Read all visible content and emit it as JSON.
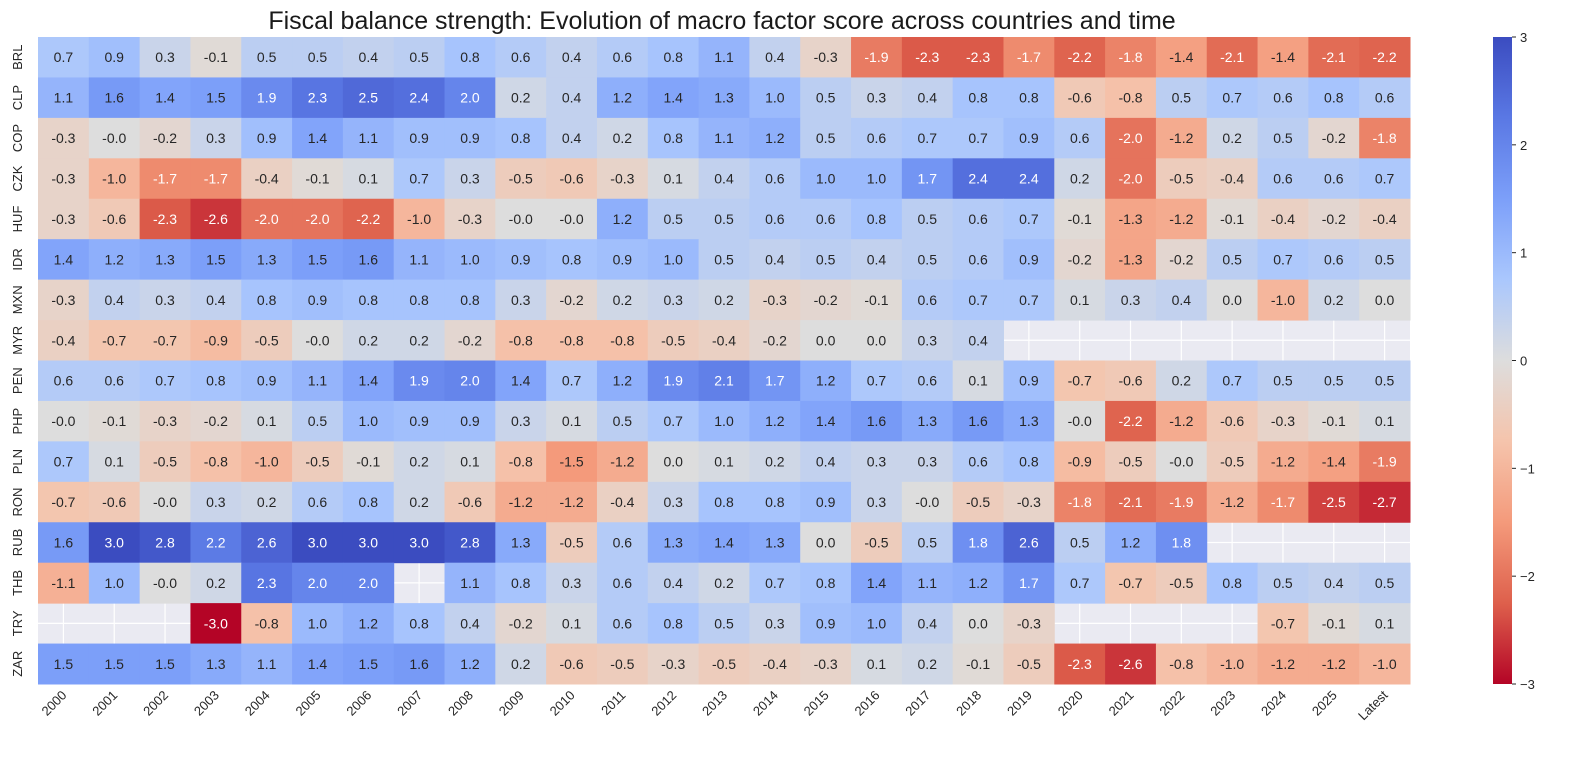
{
  "chart_data": {
    "type": "heatmap",
    "title": "Fiscal balance strength: Evolution of macro factor score across countries and time",
    "x_categories": [
      "2000",
      "2001",
      "2002",
      "2003",
      "2004",
      "2005",
      "2006",
      "2007",
      "2008",
      "2009",
      "2010",
      "2011",
      "2012",
      "2013",
      "2014",
      "2015",
      "2016",
      "2017",
      "2018",
      "2019",
      "2020",
      "2021",
      "2022",
      "2023",
      "2024",
      "2025",
      "Latest"
    ],
    "y_categories": [
      "BRL",
      "CLP",
      "COP",
      "CZK",
      "HUF",
      "IDR",
      "MXN",
      "MYR",
      "PEN",
      "PHP",
      "PLN",
      "RON",
      "RUB",
      "THB",
      "TRY",
      "ZAR"
    ],
    "values": [
      [
        "0.7",
        "0.9",
        "0.3",
        "-0.1",
        "0.5",
        "0.5",
        "0.4",
        "0.5",
        "0.8",
        "0.6",
        "0.4",
        "0.6",
        "0.8",
        "1.1",
        "0.4",
        "-0.3",
        "-1.9",
        "-2.3",
        "-2.3",
        "-1.7",
        "-2.2",
        "-1.8",
        "-1.4",
        "-2.1",
        "-1.4",
        "-2.1",
        "-2.2"
      ],
      [
        "1.1",
        "1.6",
        "1.4",
        "1.5",
        "1.9",
        "2.3",
        "2.5",
        "2.4",
        "2.0",
        "0.2",
        "0.4",
        "1.2",
        "1.4",
        "1.3",
        "1.0",
        "0.5",
        "0.3",
        "0.4",
        "0.8",
        "0.8",
        "-0.6",
        "-0.8",
        "0.5",
        "0.7",
        "0.6",
        "0.8",
        "0.6"
      ],
      [
        "-0.3",
        "-0.0",
        "-0.2",
        "0.3",
        "0.9",
        "1.4",
        "1.1",
        "0.9",
        "0.9",
        "0.8",
        "0.4",
        "0.2",
        "0.8",
        "1.1",
        "1.2",
        "0.5",
        "0.6",
        "0.7",
        "0.7",
        "0.9",
        "0.6",
        "-2.0",
        "-1.2",
        "0.2",
        "0.5",
        "-0.2",
        "-1.8"
      ],
      [
        "-0.3",
        "-1.0",
        "-1.7",
        "-1.7",
        "-0.4",
        "-0.1",
        "0.1",
        "0.7",
        "0.3",
        "-0.5",
        "-0.6",
        "-0.3",
        "0.1",
        "0.4",
        "0.6",
        "1.0",
        "1.0",
        "1.7",
        "2.4",
        "2.4",
        "0.2",
        "-2.0",
        "-0.5",
        "-0.4",
        "0.6",
        "0.6",
        "0.7"
      ],
      [
        "-0.3",
        "-0.6",
        "-2.3",
        "-2.6",
        "-2.0",
        "-2.0",
        "-2.2",
        "-1.0",
        "-0.3",
        "-0.0",
        "-0.0",
        "1.2",
        "0.5",
        "0.5",
        "0.6",
        "0.6",
        "0.8",
        "0.5",
        "0.6",
        "0.7",
        "-0.1",
        "-1.3",
        "-1.2",
        "-0.1",
        "-0.4",
        "-0.2",
        "-0.4"
      ],
      [
        "1.4",
        "1.2",
        "1.3",
        "1.5",
        "1.3",
        "1.5",
        "1.6",
        "1.1",
        "1.0",
        "0.9",
        "0.8",
        "0.9",
        "1.0",
        "0.5",
        "0.4",
        "0.5",
        "0.4",
        "0.5",
        "0.6",
        "0.9",
        "-0.2",
        "-1.3",
        "-0.2",
        "0.5",
        "0.7",
        "0.6",
        "0.5"
      ],
      [
        "-0.3",
        "0.4",
        "0.3",
        "0.4",
        "0.8",
        "0.9",
        "0.8",
        "0.8",
        "0.8",
        "0.3",
        "-0.2",
        "0.2",
        "0.3",
        "0.2",
        "-0.3",
        "-0.2",
        "-0.1",
        "0.6",
        "0.7",
        "0.7",
        "0.1",
        "0.3",
        "0.4",
        "0.0",
        "-1.0",
        "0.2",
        "0.0"
      ],
      [
        "-0.4",
        "-0.7",
        "-0.7",
        "-0.9",
        "-0.5",
        "-0.0",
        "0.2",
        "0.2",
        "-0.2",
        "-0.8",
        "-0.8",
        "-0.8",
        "-0.5",
        "-0.4",
        "-0.2",
        "0.0",
        "0.0",
        "0.3",
        "0.4",
        null,
        null,
        null,
        null,
        null,
        null,
        null,
        null
      ],
      [
        "0.6",
        "0.6",
        "0.7",
        "0.8",
        "0.9",
        "1.1",
        "1.4",
        "1.9",
        "2.0",
        "1.4",
        "0.7",
        "1.2",
        "1.9",
        "2.1",
        "1.7",
        "1.2",
        "0.7",
        "0.6",
        "0.1",
        "0.9",
        "-0.7",
        "-0.6",
        "0.2",
        "0.7",
        "0.5",
        "0.5",
        "0.5"
      ],
      [
        "-0.0",
        "-0.1",
        "-0.3",
        "-0.2",
        "0.1",
        "0.5",
        "1.0",
        "0.9",
        "0.9",
        "0.3",
        "0.1",
        "0.5",
        "0.7",
        "1.0",
        "1.2",
        "1.4",
        "1.6",
        "1.3",
        "1.6",
        "1.3",
        "-0.0",
        "-2.2",
        "-1.2",
        "-0.6",
        "-0.3",
        "-0.1",
        "0.1"
      ],
      [
        "0.7",
        "0.1",
        "-0.5",
        "-0.8",
        "-1.0",
        "-0.5",
        "-0.1",
        "0.2",
        "0.1",
        "-0.8",
        "-1.5",
        "-1.2",
        "0.0",
        "0.1",
        "0.2",
        "0.4",
        "0.3",
        "0.3",
        "0.6",
        "0.8",
        "-0.9",
        "-0.5",
        "-0.0",
        "-0.5",
        "-1.2",
        "-1.4",
        "-1.9"
      ],
      [
        "-0.7",
        "-0.6",
        "-0.0",
        "0.3",
        "0.2",
        "0.6",
        "0.8",
        "0.2",
        "-0.6",
        "-1.2",
        "-1.2",
        "-0.4",
        "0.3",
        "0.8",
        "0.8",
        "0.9",
        "0.3",
        "-0.0",
        "-0.5",
        "-0.3",
        "-1.8",
        "-2.1",
        "-1.9",
        "-1.2",
        "-1.7",
        "-2.5",
        "-2.7"
      ],
      [
        "1.6",
        "3.0",
        "2.8",
        "2.2",
        "2.6",
        "3.0",
        "3.0",
        "3.0",
        "2.8",
        "1.3",
        "-0.5",
        "0.6",
        "1.3",
        "1.4",
        "1.3",
        "0.0",
        "-0.5",
        "0.5",
        "1.8",
        "2.6",
        "0.5",
        "1.2",
        "1.8",
        null,
        null,
        null,
        null
      ],
      [
        "-1.1",
        "1.0",
        "-0.0",
        "0.2",
        "2.3",
        "2.0",
        "2.0",
        null,
        "1.1",
        "0.8",
        "0.3",
        "0.6",
        "0.4",
        "0.2",
        "0.7",
        "0.8",
        "1.4",
        "1.1",
        "1.2",
        "1.7",
        "0.7",
        "-0.7",
        "-0.5",
        "0.8",
        "0.5",
        "0.4",
        "0.5"
      ],
      [
        null,
        null,
        null,
        "-3.0",
        "-0.8",
        "1.0",
        "1.2",
        "0.8",
        "0.4",
        "-0.2",
        "0.1",
        "0.6",
        "0.8",
        "0.5",
        "0.3",
        "0.9",
        "1.0",
        "0.4",
        "0.0",
        "-0.3",
        null,
        null,
        null,
        null,
        "-0.7",
        "-0.1",
        "0.1"
      ],
      [
        "1.5",
        "1.5",
        "1.5",
        "1.3",
        "1.1",
        "1.4",
        "1.5",
        "1.6",
        "1.2",
        "0.2",
        "-0.6",
        "-0.5",
        "-0.3",
        "-0.5",
        "-0.4",
        "-0.3",
        "0.1",
        "0.2",
        "-0.1",
        "-0.5",
        "-2.3",
        "-2.6",
        "-0.8",
        "-1.0",
        "-1.2",
        "-1.2",
        "-1.0"
      ]
    ],
    "colormap": "coolwarm (reversed: positive blue, negative red)",
    "vmin": -3,
    "vmax": 3,
    "colorbar_ticks": [
      "3",
      "2",
      "1",
      "0",
      "−1",
      "−2",
      "−3"
    ],
    "colors": {
      "high": "#3b4cc0",
      "mid": "#dddddd",
      "low": "#b40426",
      "missing": "#eaeaf2"
    },
    "annotated": true,
    "grid": true
  }
}
